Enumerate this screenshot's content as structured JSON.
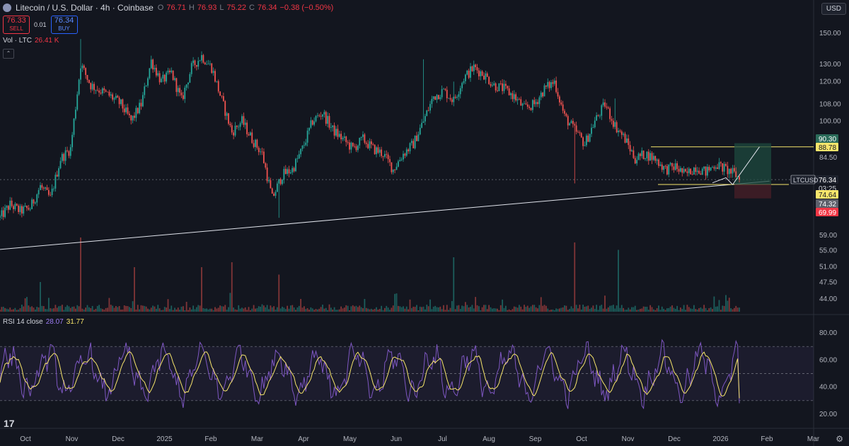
{
  "header": {
    "title": "Litecoin / U.S. Dollar · 4h · Coinbase",
    "open_label": "O",
    "open": "76.71",
    "high_label": "H",
    "high": "76.93",
    "low_label": "L",
    "low": "75.22",
    "close_label": "C",
    "close": "76.34",
    "change": "−0.38 (−0.50%)",
    "icon": "litecoin-icon"
  },
  "trade": {
    "sell_price": "76.33",
    "sell_label": "SELL",
    "spread": "0.01",
    "buy_price": "76.34",
    "buy_label": "BUY"
  },
  "currency": "USD",
  "volume_label": "Vol · LTC",
  "volume_value": "26.41 K",
  "rsi_label": "RSI 14 close",
  "rsi_value": "28.07",
  "rsi_ma_value": "31.77",
  "colors": {
    "up": "#26a69a",
    "down": "#ef5350",
    "rsi": "#7e57c2",
    "rsi_ma": "#f7e56b",
    "target": "#f7e56b"
  },
  "chart_data": {
    "type": "candlestick",
    "symbol": "LTCUSD",
    "timeframe": "4h",
    "x_ticks": [
      "Oct",
      "Nov",
      "Dec",
      "2025",
      "Feb",
      "Mar",
      "Apr",
      "May",
      "Jun",
      "Jul",
      "Aug",
      "Sep",
      "Oct",
      "Nov",
      "Dec",
      "2026",
      "Feb",
      "Mar"
    ],
    "y_scale": "log",
    "y_ticks": [
      150.0,
      130.0,
      120.0,
      108.0,
      100.0,
      84.5,
      59.0,
      55.0,
      51.0,
      47.5,
      44.0
    ],
    "price_path": [
      [
        0,
        64
      ],
      [
        3,
        68
      ],
      [
        6,
        66
      ],
      [
        9,
        67
      ],
      [
        12,
        74
      ],
      [
        15,
        70
      ],
      [
        18,
        84
      ],
      [
        21,
        88
      ],
      [
        24,
        130
      ],
      [
        27,
        118
      ],
      [
        30,
        115
      ],
      [
        33,
        112
      ],
      [
        36,
        108
      ],
      [
        39,
        100
      ],
      [
        42,
        108
      ],
      [
        45,
        132
      ],
      [
        48,
        120
      ],
      [
        51,
        125
      ],
      [
        54,
        110
      ],
      [
        57,
        128
      ],
      [
        60,
        135
      ],
      [
        63,
        128
      ],
      [
        66,
        110
      ],
      [
        69,
        95
      ],
      [
        72,
        100
      ],
      [
        75,
        92
      ],
      [
        78,
        86
      ],
      [
        81,
        70
      ],
      [
        84,
        78
      ],
      [
        87,
        80
      ],
      [
        90,
        88
      ],
      [
        93,
        100
      ],
      [
        96,
        104
      ],
      [
        99,
        96
      ],
      [
        102,
        92
      ],
      [
        105,
        88
      ],
      [
        108,
        92
      ],
      [
        111,
        88
      ],
      [
        114,
        86
      ],
      [
        117,
        80
      ],
      [
        120,
        86
      ],
      [
        123,
        90
      ],
      [
        126,
        100
      ],
      [
        129,
        112
      ],
      [
        132,
        115
      ],
      [
        135,
        110
      ],
      [
        138,
        122
      ],
      [
        141,
        128
      ],
      [
        144,
        124
      ],
      [
        147,
        118
      ],
      [
        150,
        116
      ],
      [
        153,
        112
      ],
      [
        156,
        106
      ],
      [
        159,
        108
      ],
      [
        162,
        116
      ],
      [
        165,
        120
      ],
      [
        168,
        102
      ],
      [
        171,
        96
      ],
      [
        174,
        90
      ],
      [
        177,
        100
      ],
      [
        180,
        108
      ],
      [
        183,
        98
      ],
      [
        186,
        92
      ],
      [
        189,
        84
      ],
      [
        192,
        86
      ],
      [
        195,
        84
      ],
      [
        198,
        80
      ],
      [
        201,
        81
      ],
      [
        204,
        78
      ],
      [
        207,
        81
      ],
      [
        210,
        79
      ],
      [
        213,
        82
      ],
      [
        216,
        80
      ],
      [
        219,
        78
      ],
      [
        220,
        76.34
      ]
    ],
    "price_spikes": [
      [
        24,
        146
      ],
      [
        60,
        138
      ],
      [
        83,
        64
      ],
      [
        126,
        133
      ],
      [
        135,
        120
      ],
      [
        171,
        75
      ],
      [
        183,
        111
      ]
    ],
    "last_price": 76.34,
    "countdown": "03:25",
    "price_labels": [
      {
        "value": 90.3,
        "color": "#2b6b5a"
      },
      {
        "value": 88.78,
        "color": "#f7e56b"
      },
      {
        "value": 76.34,
        "color": "#1e222d",
        "text": "LTCUSD"
      },
      {
        "value": 74.64,
        "color": "#f7e56b"
      },
      {
        "value": 74.32,
        "color": "#5d606b"
      },
      {
        "value": 69.99,
        "color": "#f23645"
      }
    ],
    "target_line": 88.78,
    "support_line_level": 74.64,
    "trendline": {
      "from": [
        0,
        55.3
      ],
      "to": [
        229,
        75.8
      ]
    },
    "position": {
      "entry": 74.64,
      "target": 90.3,
      "stop": 69.99
    },
    "projection": [
      [
        212,
        75.2
      ],
      [
        216,
        77
      ],
      [
        218,
        74.6
      ],
      [
        226,
        88.8
      ]
    ],
    "volume_peaks": [
      [
        12,
        12
      ],
      [
        24,
        30
      ],
      [
        40,
        18
      ],
      [
        60,
        18
      ],
      [
        69,
        20
      ],
      [
        83,
        15
      ],
      [
        135,
        22
      ],
      [
        171,
        28
      ],
      [
        184,
        25
      ]
    ],
    "rsi_range": [
      20,
      80
    ],
    "rsi_ticks": [
      80.0,
      60.0,
      40.0,
      20.0
    ],
    "rsi_bands": [
      70,
      50,
      30
    ],
    "rsi_last": 28.07,
    "rsi_ma_last": 31.77
  }
}
